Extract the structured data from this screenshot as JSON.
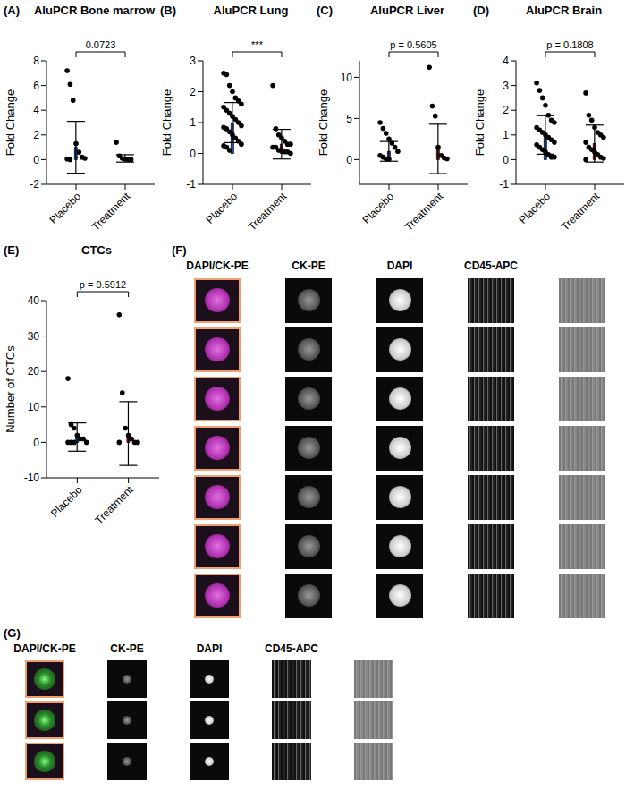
{
  "chart_data": [
    {
      "panel": "(A)",
      "type": "bar",
      "title": "AluPCR Bone marrow",
      "y_label": "Fold Change",
      "categories": [
        "Placebo",
        "Treatment"
      ],
      "values": [
        1.0,
        0.1
      ],
      "error": [
        2.1,
        0.3
      ],
      "points": [
        [
          7.2,
          6.1,
          4.8,
          1.3,
          0.6,
          0.2,
          0.1,
          0.05,
          0.0
        ],
        [
          1.4,
          0.3,
          0.1,
          0.05,
          0.0,
          0.0
        ]
      ],
      "colors": [
        "#1f5fd6",
        "#c0141c"
      ],
      "ylim": [
        -2,
        8
      ],
      "yticks": [
        -2,
        0,
        2,
        4,
        6,
        8
      ],
      "annotation": "0.0723"
    },
    {
      "panel": "(B)",
      "type": "bar",
      "title": "AluPCR Lung",
      "y_label": "Fold Change",
      "categories": [
        "Placebo",
        "Treatment"
      ],
      "values": [
        1.0,
        0.3
      ],
      "error": [
        0.65,
        0.48
      ],
      "points": [
        [
          2.6,
          2.55,
          2.2,
          2.0,
          1.8,
          1.7,
          1.6,
          1.5,
          1.4,
          1.3,
          1.2,
          1.1,
          1.0,
          0.9,
          0.85,
          0.8,
          0.7,
          0.6,
          0.5,
          0.4,
          0.3,
          0.25,
          0.2,
          0.1
        ],
        [
          2.2,
          0.8,
          0.6,
          0.5,
          0.4,
          0.3,
          0.3,
          0.2,
          0.2,
          0.1,
          0.1,
          0.05,
          0.05,
          0.0
        ]
      ],
      "colors": [
        "#1f5fd6",
        "#c0141c"
      ],
      "ylim": [
        -1,
        3
      ],
      "yticks": [
        -1,
        0,
        1,
        2,
        3
      ],
      "annotation": "***"
    },
    {
      "panel": "(C)",
      "type": "bar",
      "title": "AluPCR Liver",
      "y_label": "Fold Change",
      "categories": [
        "Placebo",
        "Treatment"
      ],
      "values": [
        1.0,
        1.3
      ],
      "error": [
        1.2,
        3.0
      ],
      "points": [
        [
          4.5,
          3.8,
          3.2,
          2.5,
          2.0,
          1.5,
          1.0,
          0.5,
          0.3,
          0.1,
          0.05
        ],
        [
          11.2,
          6.5,
          5.3,
          1.5,
          0.5,
          0.2,
          0.1
        ]
      ],
      "colors": [
        "#1f5fd6",
        "#c0141c"
      ],
      "ylim": [
        -3,
        12
      ],
      "yticks": [
        0,
        5,
        10
      ],
      "annotation": "p = 0.5605"
    },
    {
      "panel": "(D)",
      "type": "bar",
      "title": "AluPCR Brain",
      "y_label": "Fold Change",
      "categories": [
        "Placebo",
        "Treatment"
      ],
      "values": [
        1.0,
        0.65
      ],
      "error": [
        0.78,
        0.75
      ],
      "points": [
        [
          3.1,
          2.8,
          2.5,
          2.2,
          1.8,
          1.6,
          1.5,
          1.3,
          1.2,
          1.1,
          1.0,
          0.9,
          0.8,
          0.7,
          0.6,
          0.5,
          0.4,
          0.3,
          0.2,
          0.1,
          0.1
        ],
        [
          2.7,
          1.8,
          1.6,
          1.3,
          1.1,
          1.0,
          0.9,
          0.7,
          0.5,
          0.4,
          0.3,
          0.2,
          0.1,
          0.05,
          0.0
        ]
      ],
      "colors": [
        "#1f5fd6",
        "#c0141c"
      ],
      "ylim": [
        -1,
        4
      ],
      "yticks": [
        -1,
        0,
        1,
        2,
        3,
        4
      ],
      "annotation": "p = 0.1808"
    },
    {
      "panel": "(E)",
      "type": "bar",
      "title": "CTCs",
      "y_label": "Number of CTCs",
      "categories": [
        "Placebo",
        "Treatment"
      ],
      "values": [
        1.5,
        2.5
      ],
      "error": [
        4.0,
        9.0
      ],
      "points": [
        [
          18,
          5,
          4,
          2,
          1,
          1,
          0,
          0,
          0,
          0
        ],
        [
          36,
          14,
          4,
          2,
          1,
          0,
          0,
          0
        ]
      ],
      "colors": [
        "#1f5fd6",
        "#c0141c"
      ],
      "ylim": [
        -10,
        40
      ],
      "yticks": [
        -10,
        0,
        10,
        20,
        30,
        40
      ],
      "annotation": "p = 0.5912"
    }
  ],
  "image_panels": [
    {
      "panel": "(F)",
      "columns": [
        "DAPI/CK-PE",
        "CK-PE",
        "DAPI",
        "CD45-APC"
      ],
      "rows": 7
    },
    {
      "panel": "(G)",
      "columns": [
        "DAPI/CK-PE",
        "CK-PE",
        "DAPI",
        "CD45-APC"
      ],
      "rows": 3
    }
  ]
}
